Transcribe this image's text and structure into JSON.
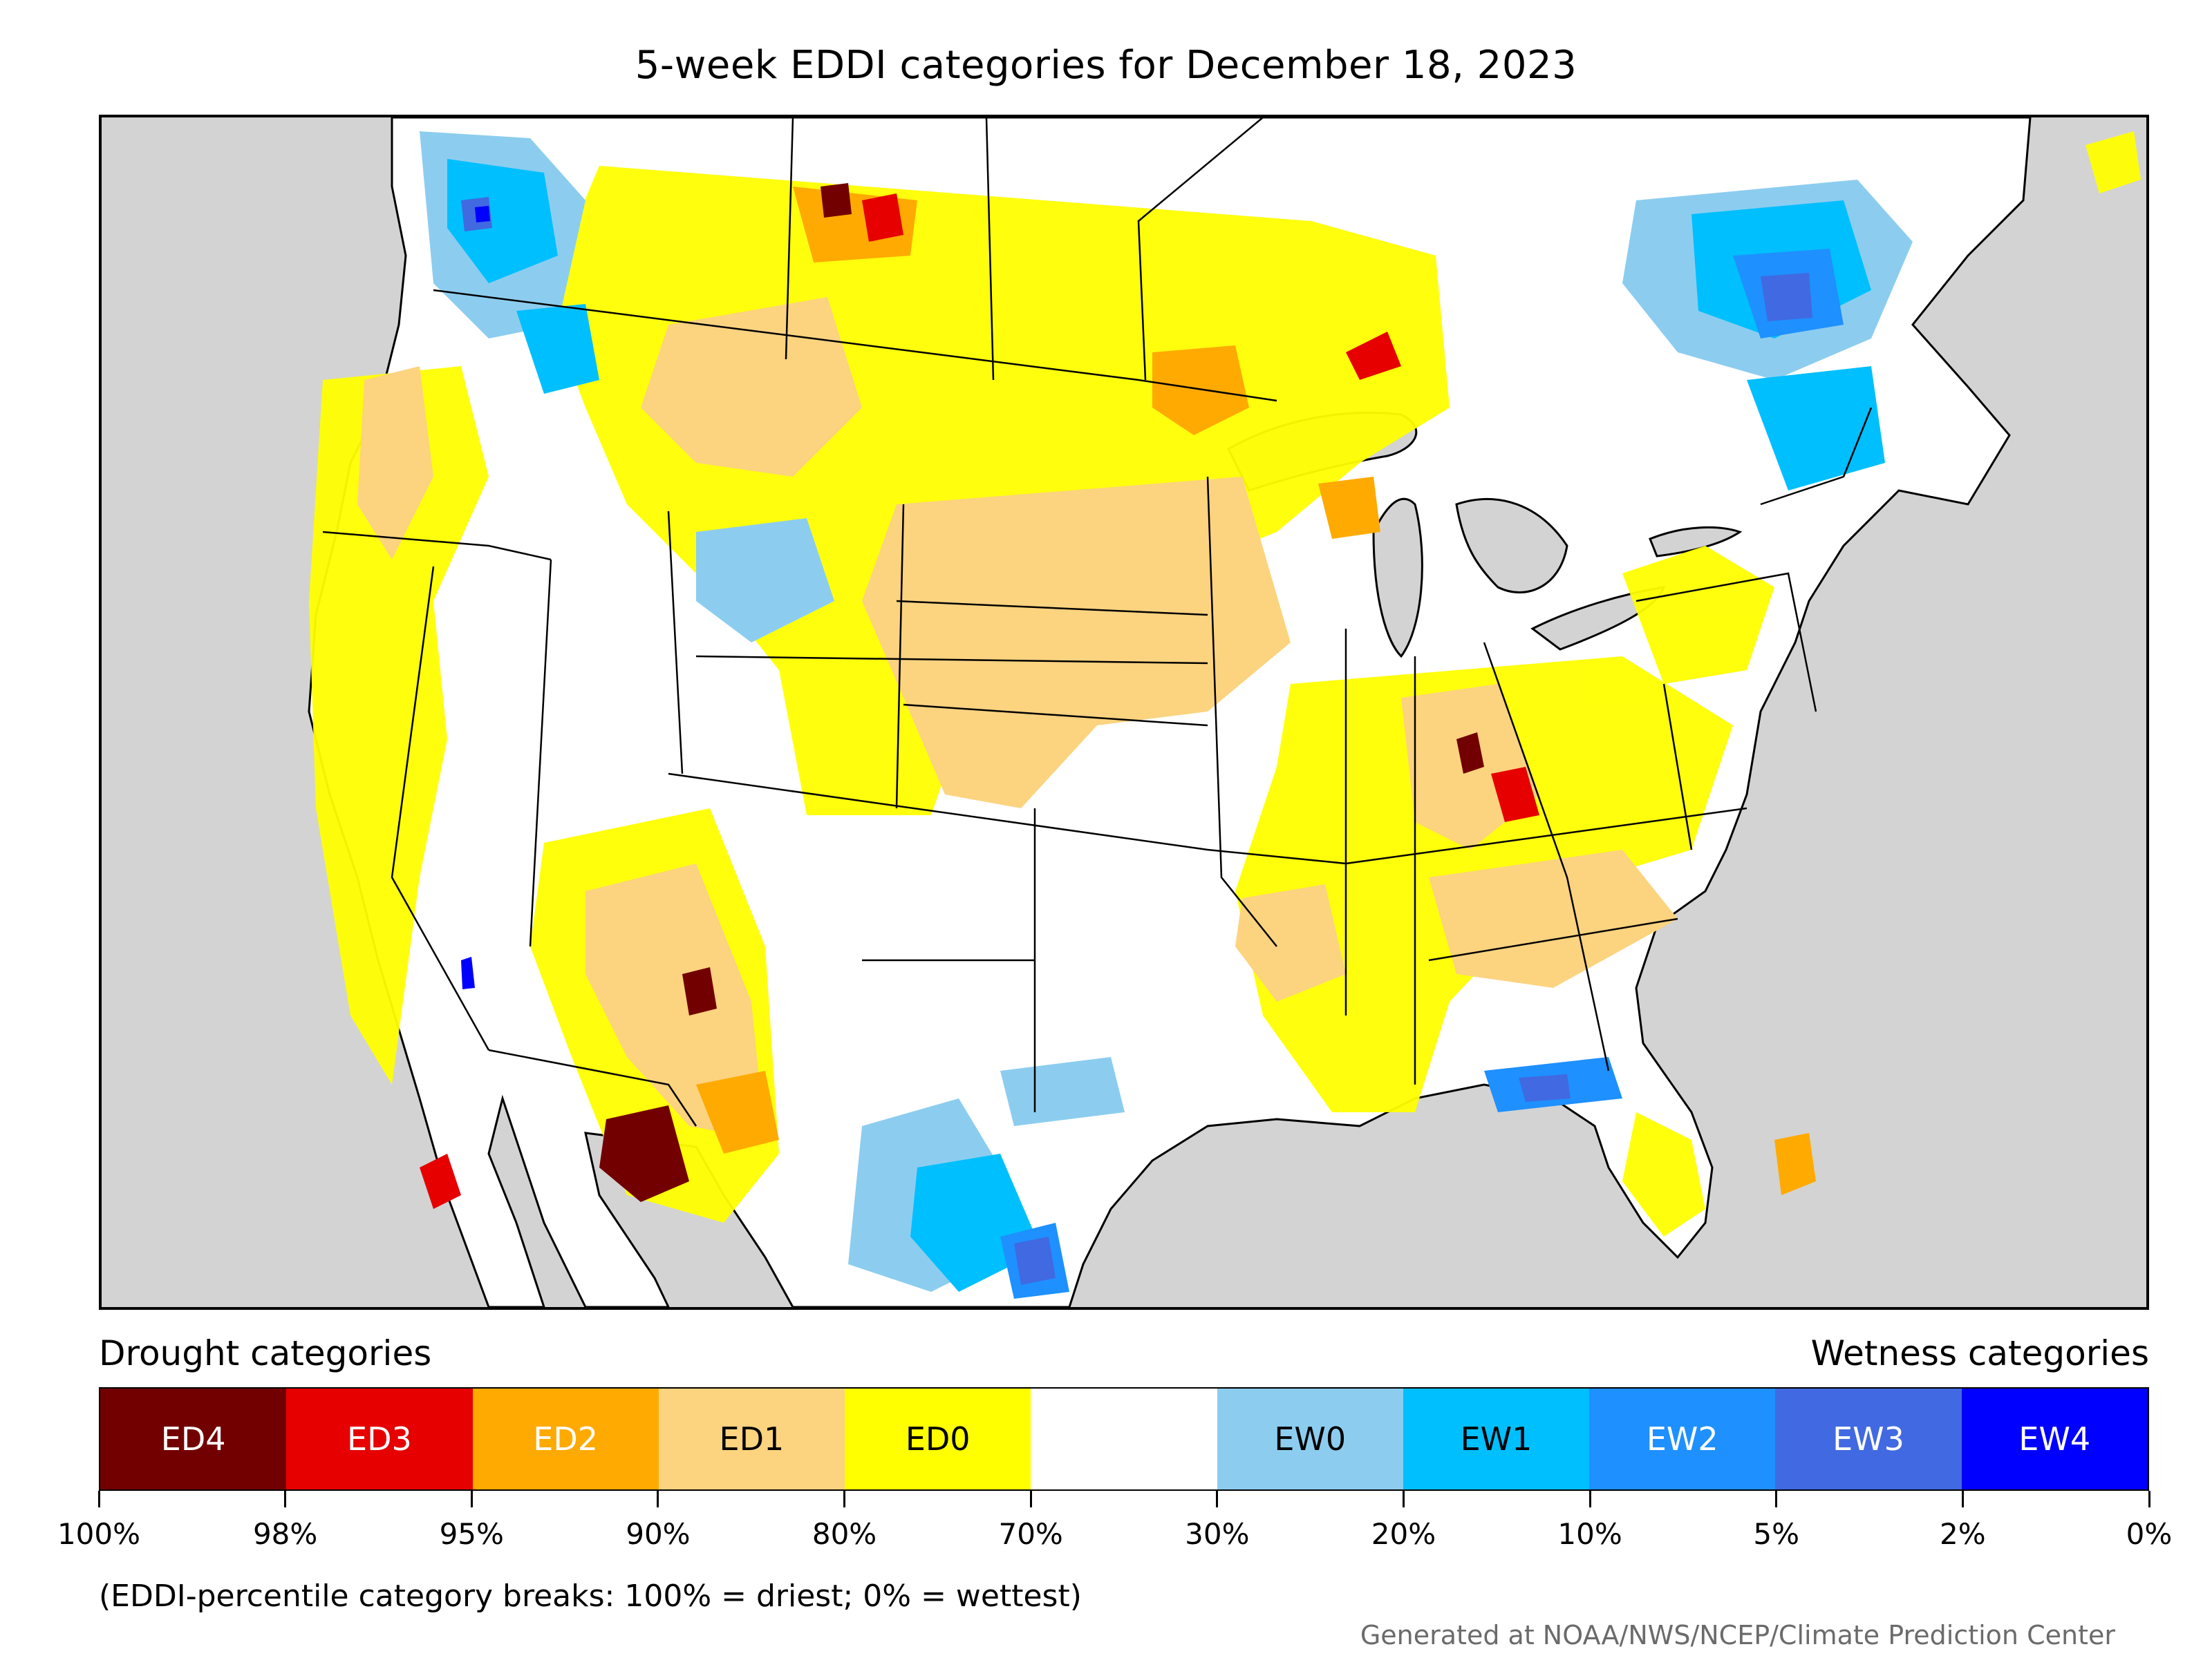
{
  "title": "5-week EDDI categories for December 18, 2023",
  "legend": {
    "drought_heading": "Drought categories",
    "wetness_heading": "Wetness categories",
    "categories": [
      {
        "label": "ED4",
        "color": "#730000",
        "text_color": "#ffffff"
      },
      {
        "label": "ED3",
        "color": "#e60000",
        "text_color": "#ffffff"
      },
      {
        "label": "ED2",
        "color": "#ffaa00",
        "text_color": "#ffffff"
      },
      {
        "label": "ED1",
        "color": "#fcd37f",
        "text_color": "#000000"
      },
      {
        "label": "ED0",
        "color": "#ffff00",
        "text_color": "#000000"
      },
      {
        "label": "",
        "color": "#ffffff",
        "text_color": "#000000"
      },
      {
        "label": "EW0",
        "color": "#8ccdef",
        "text_color": "#000000"
      },
      {
        "label": "EW1",
        "color": "#00bfff",
        "text_color": "#000000"
      },
      {
        "label": "EW2",
        "color": "#1e90ff",
        "text_color": "#ffffff"
      },
      {
        "label": "EW3",
        "color": "#4169e1",
        "text_color": "#ffffff"
      },
      {
        "label": "EW4",
        "color": "#0000ff",
        "text_color": "#ffffff"
      }
    ],
    "breaks": [
      "100%",
      "98%",
      "95%",
      "90%",
      "80%",
      "70%",
      "30%",
      "20%",
      "10%",
      "5%",
      "2%",
      "0%"
    ]
  },
  "note": "(EDDI-percentile category breaks: 100% = driest; 0% = wettest)",
  "credit": "Generated at NOAA/NWS/NCEP/Climate Prediction Center",
  "colors": {
    "background_land_outside": "#d3d3d3",
    "water": "#d3d3d3",
    "land": "#ffffff"
  }
}
